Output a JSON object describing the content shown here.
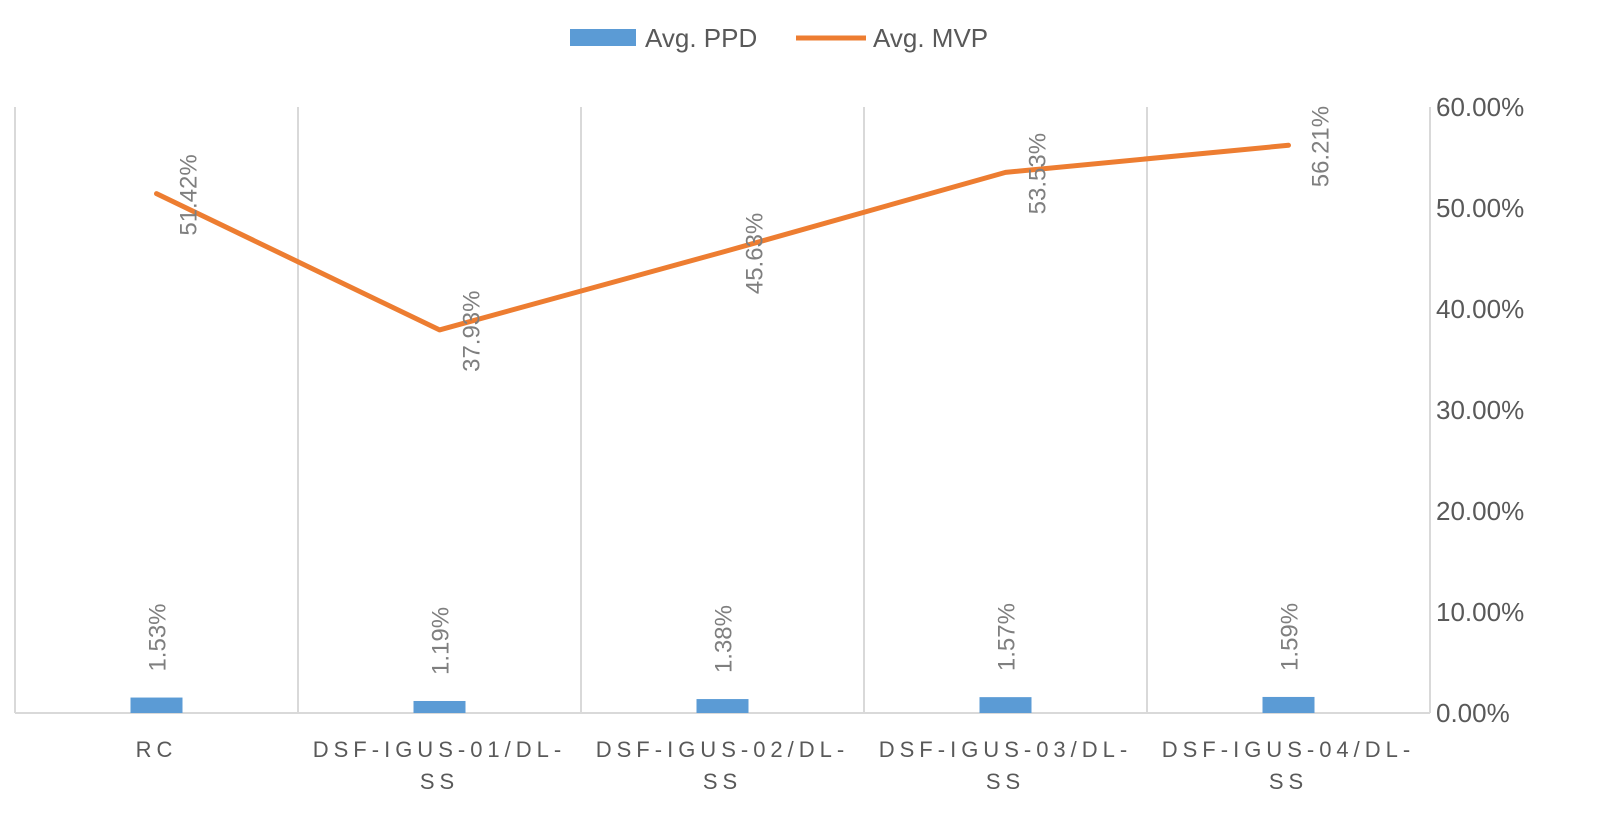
{
  "chart_data": {
    "type": "bar",
    "categories": [
      [
        "RC"
      ],
      [
        "DSF-IGUS-01/DL-",
        "SS"
      ],
      [
        "DSF-IGUS-02/DL-",
        "SS"
      ],
      [
        "DSF-IGUS-03/DL-",
        "SS"
      ],
      [
        "DSF-IGUS-04/DL-",
        "SS"
      ]
    ],
    "series": [
      {
        "name": "Avg. PPD",
        "type": "bar",
        "color": "#5b9bd5",
        "values": [
          1.53,
          1.19,
          1.38,
          1.57,
          1.59
        ],
        "labels": [
          "1.53%",
          "1.19%",
          "1.38%",
          "1.57%",
          "1.59%"
        ]
      },
      {
        "name": "Avg. MVP",
        "type": "line",
        "color": "#ed7d31",
        "values": [
          51.42,
          37.93,
          45.63,
          53.53,
          56.21
        ],
        "labels": [
          "51.42%",
          "37.93%",
          "45.63%",
          "53.53%",
          "56.21%"
        ]
      }
    ],
    "y_axis": {
      "position": "right",
      "min": 0,
      "max": 60,
      "ticks": [
        0,
        10,
        20,
        30,
        40,
        50,
        60
      ],
      "tick_labels": [
        "0.00%",
        "10.00%",
        "20.00%",
        "30.00%",
        "40.00%",
        "50.00%",
        "60.00%"
      ]
    },
    "legend_position": "top",
    "grid": "vertical category separators",
    "title": "",
    "xlabel": "",
    "ylabel": ""
  }
}
